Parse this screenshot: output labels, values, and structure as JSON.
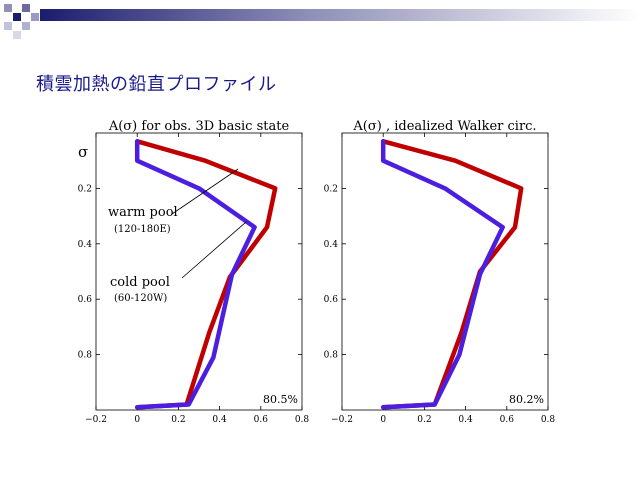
{
  "slide": {
    "title": "積雲加熱の鉛直プロファイル"
  },
  "colors": {
    "title": "#1a1a8c",
    "header_dark": "#1c1c6e",
    "header_mid": "#8f8fb8",
    "warm": "#c00000",
    "cold": "#4b1ee0"
  },
  "chart_data": [
    {
      "type": "line",
      "title": "A(σ) for obs. 3D basic state",
      "ylabel": "σ",
      "xlim": [
        -0.2,
        0.8
      ],
      "ylim": [
        1.0,
        0.0
      ],
      "y_inverted": true,
      "xticks": [
        "−0.2",
        "0",
        "0.2",
        "0.4",
        "0.6",
        "0.8"
      ],
      "yticks": [
        "0.2",
        "0.4",
        "0.6",
        "0.8"
      ],
      "ytick_values": [
        0.2,
        0.4,
        0.6,
        0.8
      ],
      "xtick_values": [
        -0.2,
        0,
        0.2,
        0.4,
        0.6,
        0.8
      ],
      "annotation_pct": "80.5%",
      "labels": [
        {
          "name": "warm pool",
          "sub": "(120-180E)"
        },
        {
          "name": "cold pool",
          "sub": "(60-120W)"
        }
      ],
      "series": [
        {
          "name": "warm pool",
          "color": "#c00000",
          "x": [
            0,
            0.33,
            0.67,
            0.63,
            0.45,
            0.35,
            0.24,
            0
          ],
          "y": [
            0.03,
            0.1,
            0.2,
            0.34,
            0.52,
            0.72,
            0.98,
            0.99
          ]
        },
        {
          "name": "cold pool",
          "color": "#4b1ee0",
          "x": [
            0,
            0,
            0.3,
            0.57,
            0.46,
            0.37,
            0.25,
            0
          ],
          "y": [
            0.03,
            0.1,
            0.2,
            0.34,
            0.51,
            0.81,
            0.98,
            0.99
          ]
        }
      ]
    },
    {
      "type": "line",
      "title": "A(σ) , idealized Walker circ.",
      "ylabel": "",
      "xlim": [
        -0.2,
        0.8
      ],
      "ylim": [
        1.0,
        0.0
      ],
      "y_inverted": true,
      "xticks": [
        "−0.2",
        "0",
        "0.2",
        "0.4",
        "0.6",
        "0.8"
      ],
      "yticks": [
        "0.2",
        "0.4",
        "0.6",
        "0.8"
      ],
      "ytick_values": [
        0.2,
        0.4,
        0.6,
        0.8
      ],
      "xtick_values": [
        -0.2,
        0,
        0.2,
        0.4,
        0.6,
        0.8
      ],
      "annotation_pct": "80.2%",
      "series": [
        {
          "color": "#c00000",
          "x": [
            0,
            0.35,
            0.67,
            0.64,
            0.47,
            0.38,
            0.25,
            0
          ],
          "y": [
            0.03,
            0.1,
            0.2,
            0.34,
            0.5,
            0.72,
            0.98,
            0.99
          ]
        },
        {
          "color": "#4b1ee0",
          "x": [
            0,
            0,
            0.3,
            0.58,
            0.47,
            0.37,
            0.25,
            0
          ],
          "y": [
            0.03,
            0.1,
            0.2,
            0.34,
            0.51,
            0.8,
            0.98,
            0.99
          ]
        }
      ]
    }
  ]
}
